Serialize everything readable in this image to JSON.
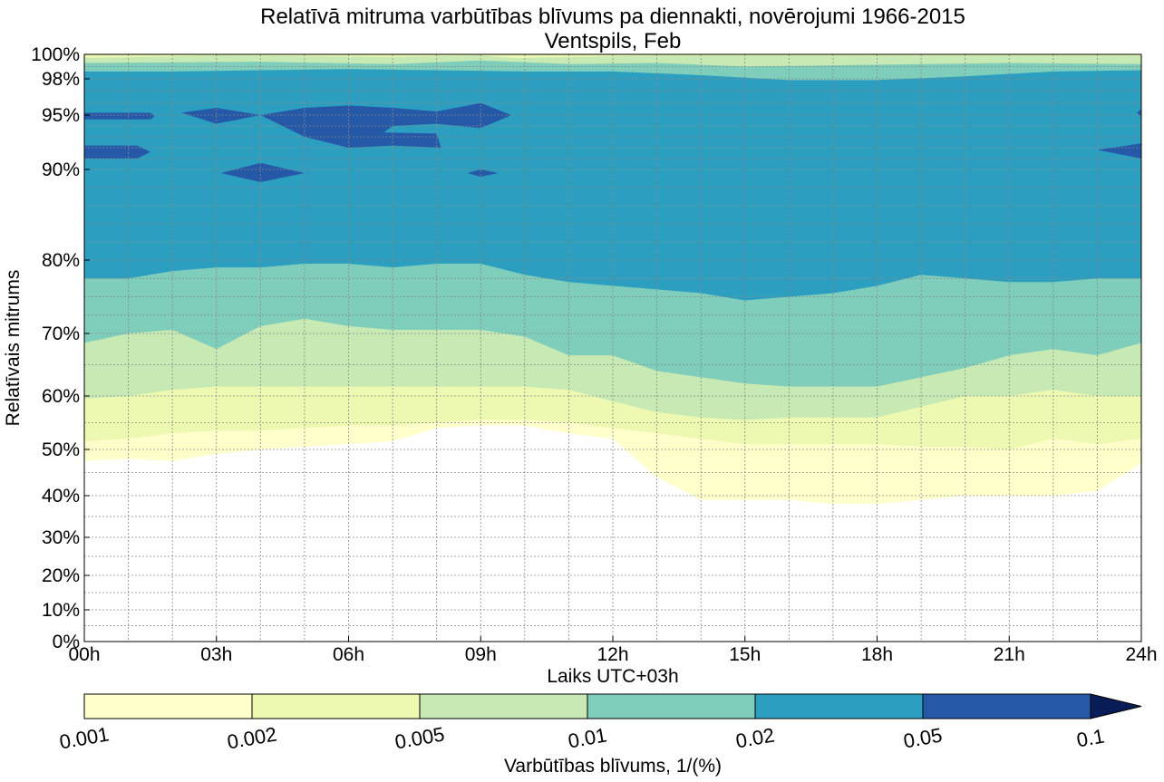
{
  "chart_data": {
    "type": "contourf",
    "title": "Relatīvā mitruma varbūtības blīvums pa diennakti, novērojumi 1966-2015",
    "subtitle": "Ventspils, Feb",
    "xlabel": "Laiks UTC+03h",
    "ylabel": "Relatīvais mitrums",
    "xlim": [
      0,
      24
    ],
    "x_ticks": [
      0,
      3,
      6,
      9,
      12,
      15,
      18,
      21,
      24
    ],
    "x_tick_labels": [
      "00h",
      "03h",
      "06h",
      "09h",
      "12h",
      "15h",
      "18h",
      "21h",
      "24h"
    ],
    "y_ticks": [
      0,
      10,
      20,
      30,
      40,
      50,
      60,
      70,
      80,
      90,
      95,
      98,
      100
    ],
    "y_tick_labels": [
      "0%",
      "10%",
      "20%",
      "30%",
      "40%",
      "50%",
      "60%",
      "70%",
      "80%",
      "90%",
      "95%",
      "98%",
      "100%"
    ],
    "y_scale": "nonlinear (stretched toward 100%)",
    "grid": true,
    "colorbar": {
      "label": "Varbūtības blīvums, 1/(%)",
      "levels": [
        0.001,
        0.002,
        0.005,
        0.01,
        0.02,
        0.05,
        0.1
      ],
      "tick_labels": [
        "0.001",
        "0.002",
        "0.005",
        "0.01",
        "0.02",
        "0.05",
        "0.1"
      ],
      "colors": [
        "#ffffcc",
        "#edf8b1",
        "#c7e9b4",
        "#7fcdbb",
        "#2c9fc0",
        "#2559a8",
        "#081d58"
      ],
      "extend": "max",
      "orientation": "horizontal",
      "position": "bottom"
    },
    "x_hours": [
      0,
      1,
      2,
      3,
      4,
      5,
      6,
      7,
      8,
      9,
      10,
      11,
      12,
      13,
      14,
      15,
      16,
      17,
      18,
      19,
      20,
      21,
      22,
      23,
      24
    ],
    "contour_boundaries_rh": [
      {
        "level": 0.001,
        "rh": [
          47.5,
          48,
          47.5,
          49,
          50,
          50.5,
          51,
          51.5,
          54,
          54.5,
          54.5,
          53,
          52,
          44,
          39,
          39,
          39,
          38,
          38,
          39,
          40,
          40,
          40,
          41,
          47
        ]
      },
      {
        "level": 0.002,
        "rh": [
          51.5,
          52,
          53,
          53.5,
          53.5,
          54,
          54.5,
          54.5,
          55,
          55.5,
          55.5,
          55,
          54,
          53,
          52,
          51,
          51,
          51,
          51,
          50.5,
          50.5,
          50,
          52,
          51,
          52
        ]
      },
      {
        "level": 0.005,
        "rh": [
          59.5,
          60,
          61,
          61.5,
          61.5,
          61.5,
          61.5,
          61.5,
          61.5,
          61.5,
          61.5,
          61,
          59,
          57,
          56,
          55.5,
          56,
          56,
          56,
          58,
          60,
          60,
          61,
          60,
          60
        ]
      },
      {
        "level": 0.01,
        "rh": [
          68.5,
          70,
          70.5,
          67.5,
          71,
          72,
          71,
          70.5,
          70.5,
          70.5,
          69.5,
          66.5,
          66.5,
          64,
          63,
          62,
          61.5,
          61.5,
          61.5,
          63,
          64.5,
          66.5,
          67.5,
          66.5,
          68.5
        ]
      },
      {
        "level": 0.02,
        "rh": [
          77.5,
          77.5,
          78.5,
          79,
          79,
          79.5,
          79.5,
          79,
          79.5,
          79.5,
          78,
          77,
          76.5,
          76,
          75.5,
          74.5,
          75,
          75.5,
          76.5,
          78,
          77.5,
          77,
          77,
          77.5,
          77.5
        ]
      }
    ],
    "high_density_regions_0.05": [
      "~95% RH at 00h-01h",
      "~92% RH at 00h-01h",
      "~95% RH from 03h-09h",
      "~89% RH near 04h",
      "~89% RH near 09h",
      "~98-100% RH band near 06h-09h (0.02 level)"
    ]
  }
}
